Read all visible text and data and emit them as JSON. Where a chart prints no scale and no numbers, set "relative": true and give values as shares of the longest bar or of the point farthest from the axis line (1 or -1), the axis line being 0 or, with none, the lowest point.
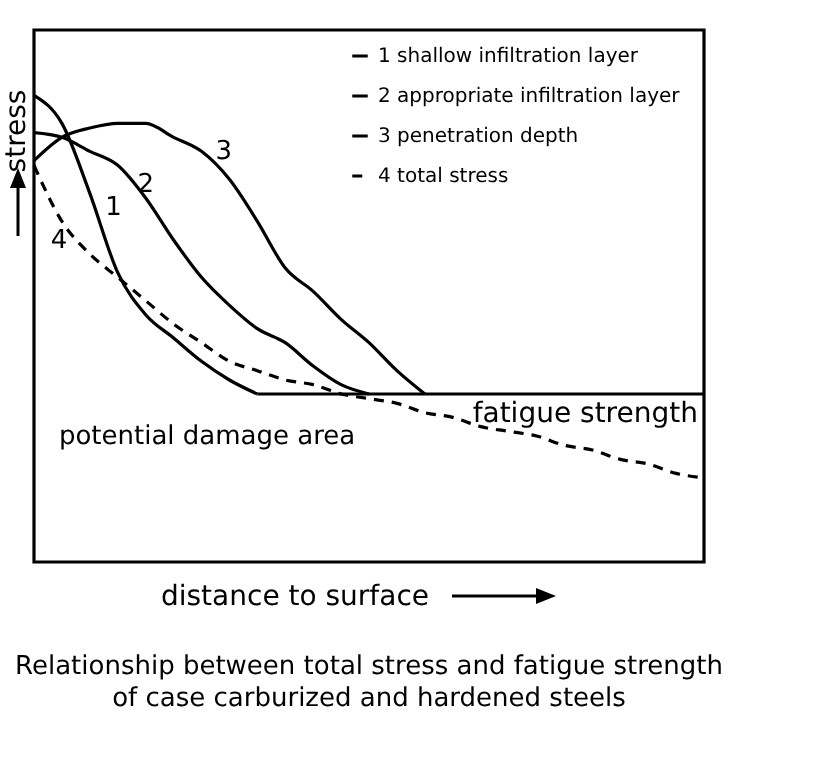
{
  "chart_data": {
    "type": "line",
    "relative": true,
    "title": "Relationship between total stress and fatigue strength of case carburized and hardened steels",
    "xlabel": "distance to surface",
    "ylabel": "stress",
    "legend": "top right",
    "tick_labels": false,
    "grid": false,
    "marker": "none",
    "categories": [
      null,
      null,
      null,
      null,
      null,
      null,
      null,
      null,
      null,
      null,
      null,
      null,
      null,
      null,
      null,
      null,
      null,
      null,
      null,
      null,
      null,
      null,
      null,
      null,
      null
    ],
    "series": [
      {
        "name": "1 shallow infiltration layer",
        "color": "#000000",
        "values": [
          1,
          0.94,
          0.79,
          0.62,
          0.53,
          0.48,
          0.43,
          0.39,
          0.36,
          null,
          null,
          null,
          null,
          null,
          null,
          null,
          null,
          null,
          null,
          null,
          null,
          null,
          null,
          null,
          null
        ]
      },
      {
        "name": "2 appropriate infiltration layer",
        "color": "#000000",
        "values": [
          0.92,
          0.91,
          0.88,
          0.85,
          0.78,
          0.69,
          0.61,
          0.55,
          0.5,
          0.47,
          0.42,
          0.38,
          0.36,
          null,
          null,
          null,
          null,
          null,
          null,
          null,
          null,
          null,
          null,
          null,
          null
        ]
      },
      {
        "name": "3 penetration depth",
        "color": "#000000",
        "values": [
          0.86,
          0.91,
          0.93,
          0.94,
          0.94,
          0.91,
          0.88,
          0.82,
          0.73,
          0.63,
          0.58,
          0.52,
          0.47,
          0.41,
          0.36,
          null,
          null,
          null,
          null,
          null,
          null,
          null,
          null,
          null,
          null
        ]
      },
      {
        "name": "4 total stress",
        "color": "#000000",
        "line_style": "dashed",
        "values": [
          0.85,
          0.73,
          0.66,
          0.61,
          0.56,
          0.51,
          0.47,
          0.43,
          0.41,
          0.39,
          0.38,
          0.36,
          0.35,
          0.34,
          0.32,
          0.31,
          0.29,
          0.28,
          0.27,
          0.25,
          0.24,
          0.22,
          0.21,
          0.19,
          0.18
        ]
      },
      {
        "name": "fatigue strength",
        "color": "#000000",
        "values": [
          null,
          null,
          null,
          null,
          null,
          null,
          null,
          null,
          0.36,
          0.36,
          0.36,
          0.36,
          0.36,
          0.36,
          0.36,
          0.36,
          0.36,
          0.36,
          0.36,
          0.36,
          0.36,
          0.36,
          0.36,
          0.36,
          0.36
        ]
      }
    ],
    "annotations": [
      "1",
      "2",
      "3",
      "4",
      "potential damage area"
    ]
  }
}
